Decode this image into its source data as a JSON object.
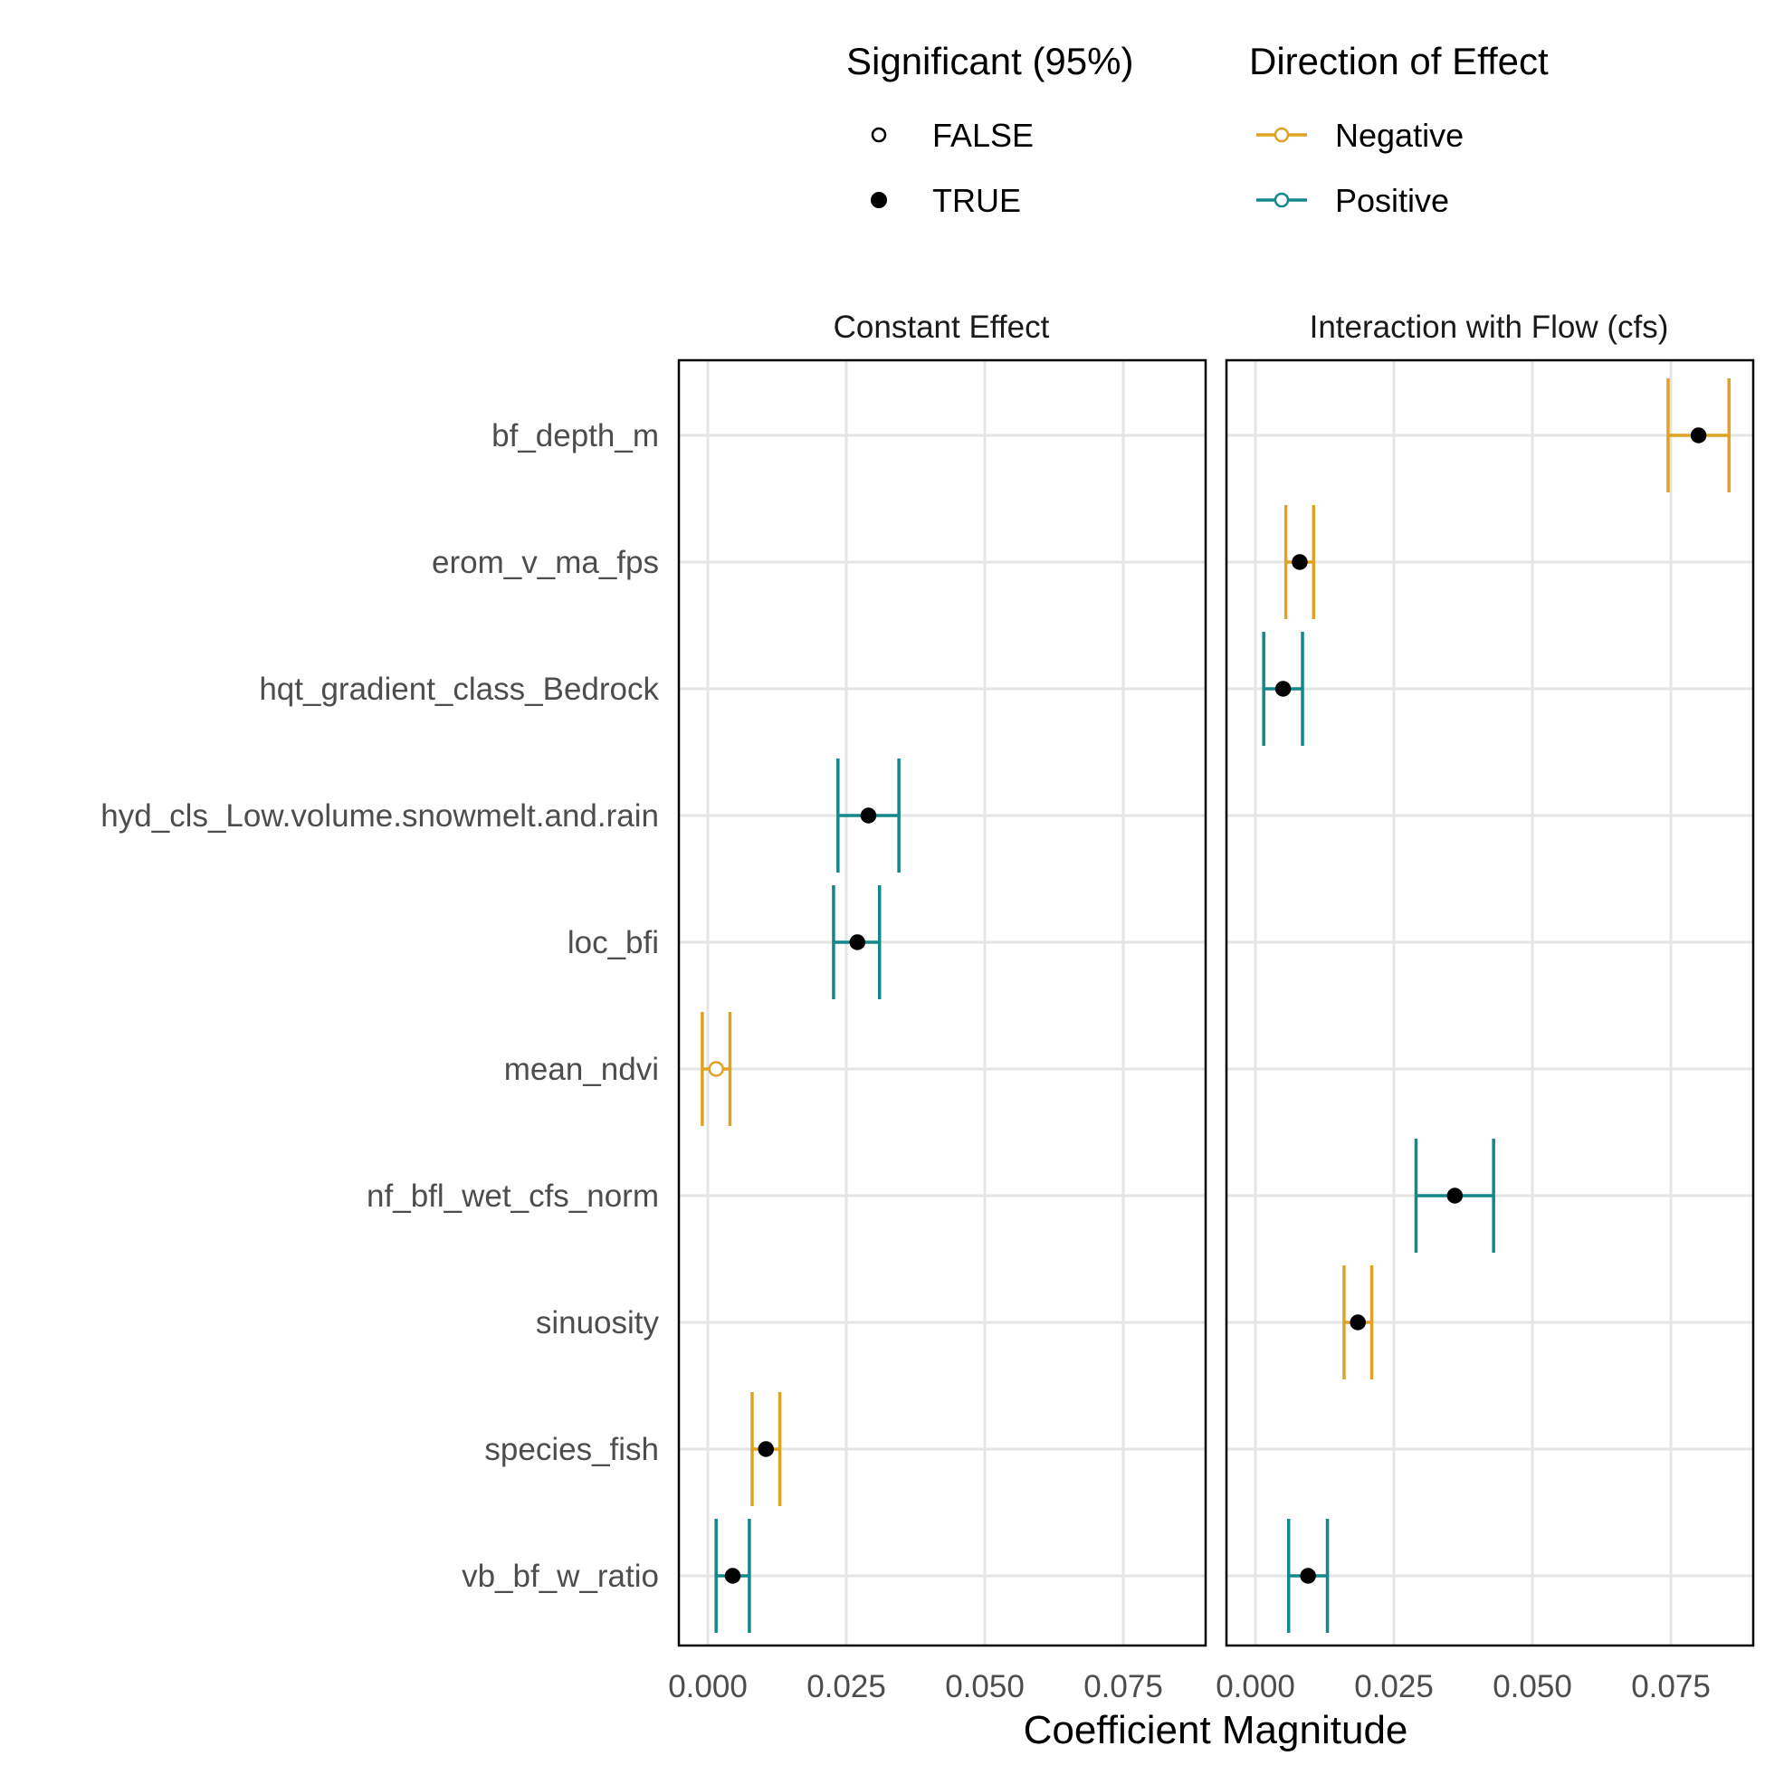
{
  "chart_data": {
    "type": "errorbar-dot",
    "xlabel": "Coefficient Magnitude",
    "xlim": [
      -0.005,
      0.09
    ],
    "x_ticks": [
      "0.000",
      "0.025",
      "0.050",
      "0.075"
    ],
    "x_tick_values": [
      0.0,
      0.025,
      0.05,
      0.075
    ],
    "grid": true,
    "categories": [
      "bf_depth_m",
      "erom_v_ma_fps",
      "hqt_gradient_class_Bedrock",
      "hyd_cls_Low.volume.snowmelt.and.rain",
      "loc_bfi",
      "mean_ndvi",
      "nf_bfl_wet_cfs_norm",
      "sinuosity",
      "species_fish",
      "vb_bf_w_ratio"
    ],
    "colors": {
      "Negative": "#E0A222",
      "Positive": "#13888A"
    },
    "legend": {
      "placement": "top",
      "significance": {
        "title": "Significant (95%)",
        "entries": [
          "FALSE",
          "TRUE"
        ]
      },
      "direction": {
        "title": "Direction of Effect",
        "entries": [
          "Negative",
          "Positive"
        ]
      }
    },
    "panels": [
      {
        "title": "Constant Effect",
        "points": [
          {
            "category": "hyd_cls_Low.volume.snowmelt.and.rain",
            "estimate": 0.029,
            "lower": 0.0235,
            "upper": 0.0345,
            "direction": "Positive",
            "significant": true
          },
          {
            "category": "loc_bfi",
            "estimate": 0.027,
            "lower": 0.0227,
            "upper": 0.031,
            "direction": "Positive",
            "significant": true
          },
          {
            "category": "mean_ndvi",
            "estimate": 0.0015,
            "lower": -0.001,
            "upper": 0.004,
            "direction": "Negative",
            "significant": false
          },
          {
            "category": "species_fish",
            "estimate": 0.0105,
            "lower": 0.008,
            "upper": 0.013,
            "direction": "Negative",
            "significant": true
          },
          {
            "category": "vb_bf_w_ratio",
            "estimate": 0.0045,
            "lower": 0.0015,
            "upper": 0.0075,
            "direction": "Positive",
            "significant": true
          }
        ]
      },
      {
        "title": "Interaction with Flow (cfs)",
        "points": [
          {
            "category": "bf_depth_m",
            "estimate": 0.08,
            "lower": 0.0745,
            "upper": 0.0855,
            "direction": "Negative",
            "significant": true
          },
          {
            "category": "erom_v_ma_fps",
            "estimate": 0.008,
            "lower": 0.0055,
            "upper": 0.0105,
            "direction": "Negative",
            "significant": true
          },
          {
            "category": "hqt_gradient_class_Bedrock",
            "estimate": 0.005,
            "lower": 0.0015,
            "upper": 0.0085,
            "direction": "Positive",
            "significant": true
          },
          {
            "category": "nf_bfl_wet_cfs_norm",
            "estimate": 0.036,
            "lower": 0.029,
            "upper": 0.043,
            "direction": "Positive",
            "significant": true
          },
          {
            "category": "sinuosity",
            "estimate": 0.0185,
            "lower": 0.016,
            "upper": 0.021,
            "direction": "Negative",
            "significant": true
          },
          {
            "category": "vb_bf_w_ratio",
            "estimate": 0.0095,
            "lower": 0.006,
            "upper": 0.013,
            "direction": "Positive",
            "significant": true
          }
        ]
      }
    ]
  }
}
